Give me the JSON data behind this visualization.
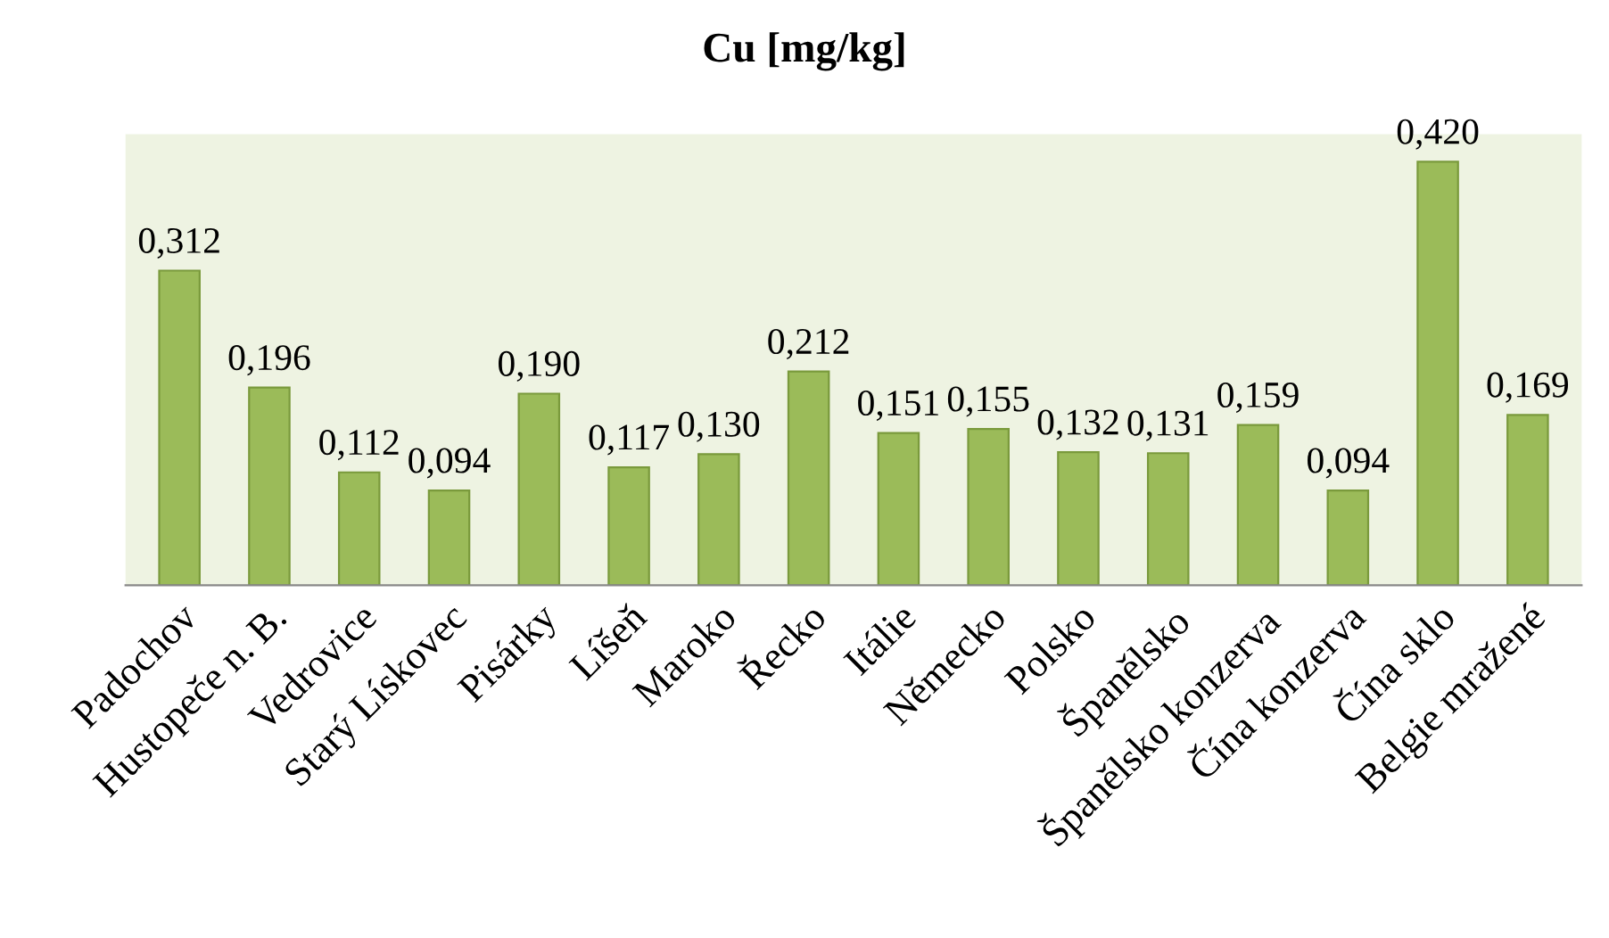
{
  "chart_data": {
    "type": "bar",
    "title": "Cu [mg/kg]",
    "categories": [
      "Padochov",
      "Hustopeče n. B.",
      "Vedrovice",
      "Starý Lískovec",
      "Pisárky",
      "Líšeň",
      "Maroko",
      "Řecko",
      "Itálie",
      "Německo",
      "Polsko",
      "Španělsko",
      "Španělsko konzerva",
      "Čína konzerva",
      "Čína sklo",
      "Belgie mražené"
    ],
    "values": [
      0.312,
      0.196,
      0.112,
      0.094,
      0.19,
      0.117,
      0.13,
      0.212,
      0.151,
      0.155,
      0.132,
      0.131,
      0.159,
      0.094,
      0.42,
      0.169
    ],
    "value_labels": [
      "0,312",
      "0,196",
      "0,112",
      "0,094",
      "0,190",
      "0,117",
      "0,130",
      "0,212",
      "0,151",
      "0,155",
      "0,132",
      "0,131",
      "0,159",
      "0,094",
      "0,420",
      "0,169"
    ],
    "color": "#9bbb59",
    "tick_labels": "x",
    "grid": false,
    "legend": false
  }
}
